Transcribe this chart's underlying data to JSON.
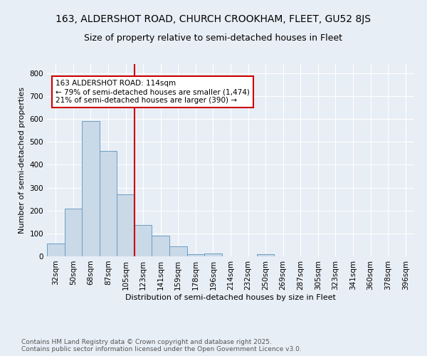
{
  "title_line1": "163, ALDERSHOT ROAD, CHURCH CROOKHAM, FLEET, GU52 8JS",
  "title_line2": "Size of property relative to semi-detached houses in Fleet",
  "xlabel": "Distribution of semi-detached houses by size in Fleet",
  "ylabel": "Number of semi-detached properties",
  "categories": [
    "32sqm",
    "50sqm",
    "68sqm",
    "87sqm",
    "105sqm",
    "123sqm",
    "141sqm",
    "159sqm",
    "178sqm",
    "196sqm",
    "214sqm",
    "232sqm",
    "250sqm",
    "269sqm",
    "287sqm",
    "305sqm",
    "323sqm",
    "341sqm",
    "360sqm",
    "378sqm",
    "396sqm"
  ],
  "values": [
    57,
    210,
    592,
    462,
    270,
    137,
    90,
    45,
    10,
    13,
    0,
    0,
    8,
    0,
    0,
    0,
    0,
    0,
    0,
    0,
    0
  ],
  "bar_color": "#c9d9e8",
  "bar_edge_color": "#6b9dc2",
  "vline_x": 4.5,
  "vline_color": "#cc0000",
  "annotation_text": "163 ALDERSHOT ROAD: 114sqm\n← 79% of semi-detached houses are smaller (1,474)\n21% of semi-detached houses are larger (390) →",
  "annotation_box_color": "#cc0000",
  "ylim": [
    0,
    840
  ],
  "yticks": [
    0,
    100,
    200,
    300,
    400,
    500,
    600,
    700,
    800
  ],
  "footer_text": "Contains HM Land Registry data © Crown copyright and database right 2025.\nContains public sector information licensed under the Open Government Licence v3.0.",
  "background_color": "#e8eef5",
  "plot_bg_color": "#e8eef5",
  "title_fontsize": 10,
  "subtitle_fontsize": 9,
  "axis_label_fontsize": 8,
  "tick_fontsize": 7.5,
  "annotation_fontsize": 7.5,
  "footer_fontsize": 6.5
}
